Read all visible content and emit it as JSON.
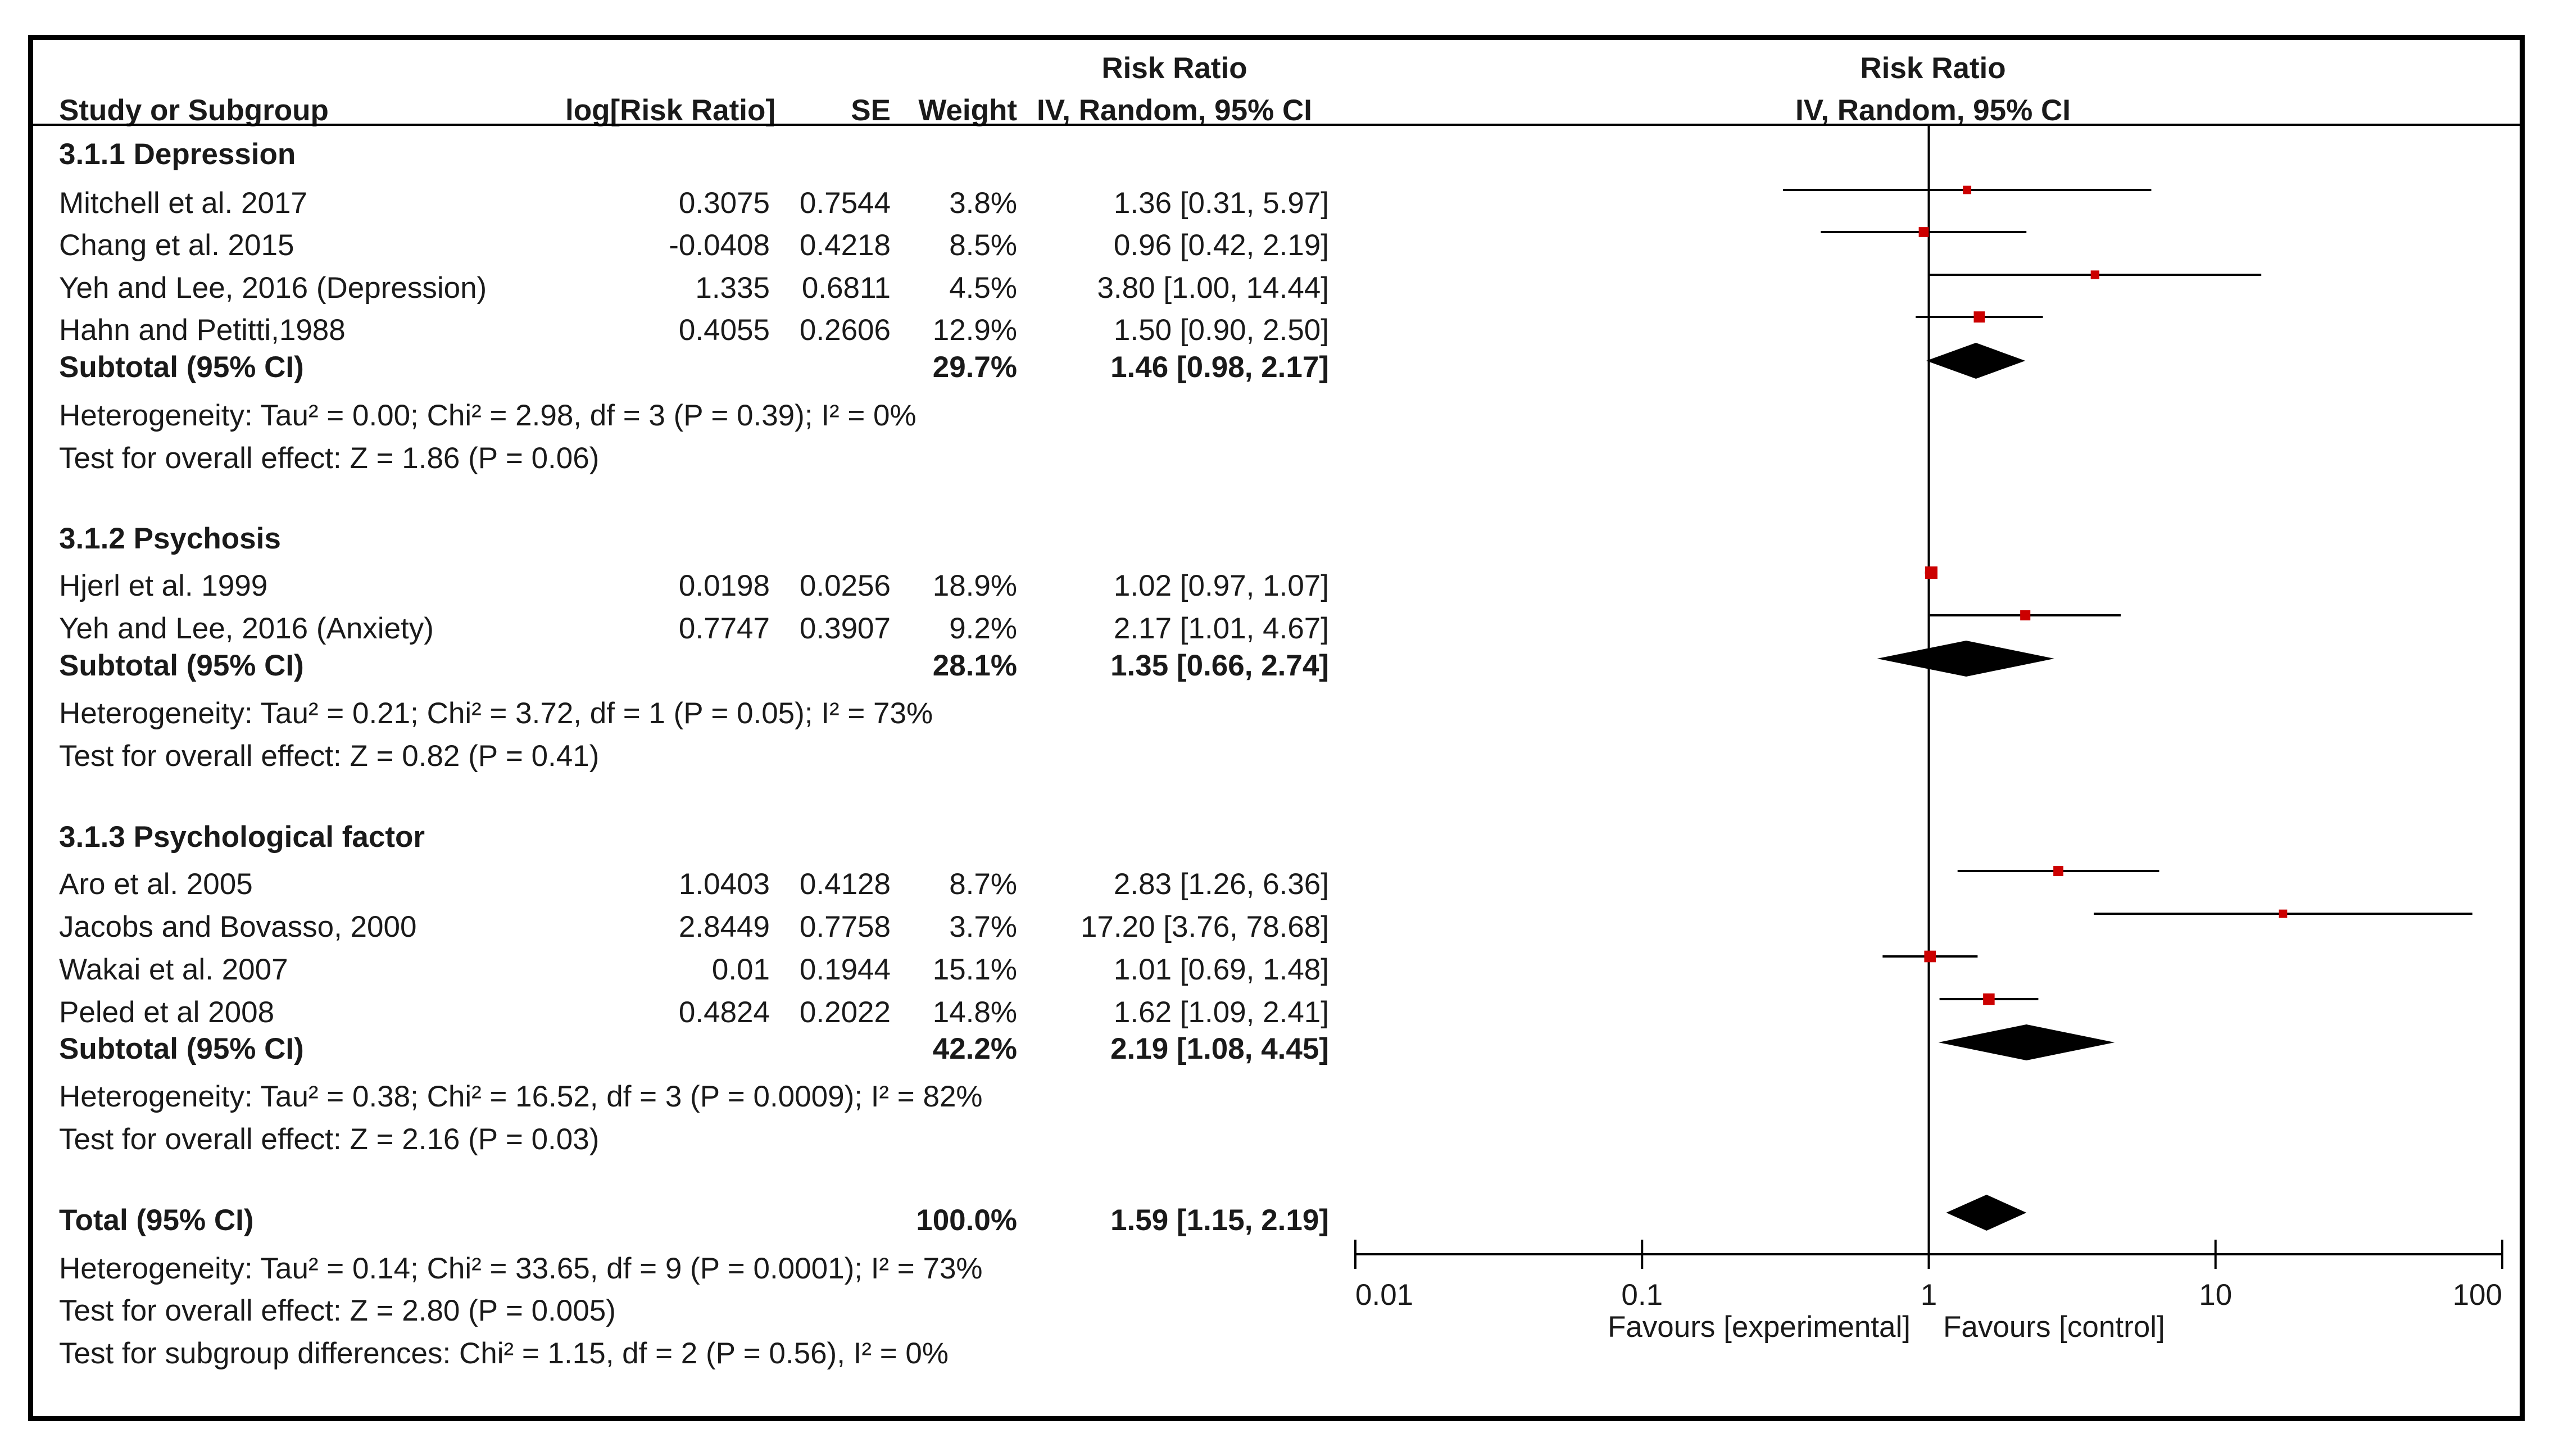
{
  "chart_data": {
    "type": "forest",
    "title": "Risk Ratio",
    "method": "IV, Random, 95% CI",
    "headers": {
      "study": "Study or Subgroup",
      "logrr": "log[Risk Ratio]",
      "se": "SE",
      "weight": "Weight",
      "rr_top": "Risk Ratio",
      "rr_method": "IV, Random, 95% CI",
      "plot_top": "Risk Ratio",
      "plot_method": "IV, Random, 95% CI"
    },
    "axis": {
      "scale": "log",
      "range": [
        0.01,
        100
      ],
      "ticks": [
        0.01,
        0.1,
        1,
        10,
        100
      ],
      "tick_labels": [
        "0.01",
        "0.1",
        "1",
        "10",
        "100"
      ],
      "label_left": "Favours [experimental]",
      "label_right": "Favours [control]"
    },
    "groups": [
      {
        "title": "3.1.1 Depression",
        "studies": [
          {
            "name": "Mitchell et al. 2017",
            "logrr": "0.3075",
            "se": "0.7544",
            "weight": "3.8%",
            "ci_text": "1.36 [0.31, 5.97]",
            "rr": 1.36,
            "lo": 0.31,
            "hi": 5.97
          },
          {
            "name": "Chang et al. 2015",
            "logrr": "-0.0408",
            "se": "0.4218",
            "weight": "8.5%",
            "ci_text": "0.96 [0.42, 2.19]",
            "rr": 0.96,
            "lo": 0.42,
            "hi": 2.19
          },
          {
            "name": "Yeh and Lee, 2016 (Depression)",
            "logrr": "1.335",
            "se": "0.6811",
            "weight": "4.5%",
            "ci_text": "3.80 [1.00, 14.44]",
            "rr": 3.8,
            "lo": 1.0,
            "hi": 14.44
          },
          {
            "name": "Hahn and Petitti,1988",
            "logrr": "0.4055",
            "se": "0.2606",
            "weight": "12.9%",
            "ci_text": "1.50 [0.90, 2.50]",
            "rr": 1.5,
            "lo": 0.9,
            "hi": 2.5
          }
        ],
        "subtotal": {
          "label": "Subtotal (95% CI)",
          "weight": "29.7%",
          "ci_text": "1.46 [0.98, 2.17]",
          "rr": 1.46,
          "lo": 0.98,
          "hi": 2.17
        },
        "heterogeneity": "Heterogeneity: Tau² = 0.00; Chi² = 2.98, df = 3 (P = 0.39); I² = 0%",
        "overall": "Test for overall effect: Z = 1.86 (P = 0.06)"
      },
      {
        "title": "3.1.2 Psychosis",
        "studies": [
          {
            "name": "Hjerl et al. 1999",
            "logrr": "0.0198",
            "se": "0.0256",
            "weight": "18.9%",
            "ci_text": "1.02 [0.97, 1.07]",
            "rr": 1.02,
            "lo": 0.97,
            "hi": 1.07
          },
          {
            "name": "Yeh and Lee, 2016 (Anxiety)",
            "logrr": "0.7747",
            "se": "0.3907",
            "weight": "9.2%",
            "ci_text": "2.17 [1.01, 4.67]",
            "rr": 2.17,
            "lo": 1.01,
            "hi": 4.67
          }
        ],
        "subtotal": {
          "label": "Subtotal (95% CI)",
          "weight": "28.1%",
          "ci_text": "1.35 [0.66, 2.74]",
          "rr": 1.35,
          "lo": 0.66,
          "hi": 2.74
        },
        "heterogeneity": "Heterogeneity: Tau² = 0.21; Chi² = 3.72, df = 1 (P = 0.05); I² = 73%",
        "overall": "Test for overall effect: Z = 0.82 (P = 0.41)"
      },
      {
        "title": "3.1.3 Psychological factor",
        "studies": [
          {
            "name": "Aro et al. 2005",
            "logrr": "1.0403",
            "se": "0.4128",
            "weight": "8.7%",
            "ci_text": "2.83 [1.26, 6.36]",
            "rr": 2.83,
            "lo": 1.26,
            "hi": 6.36
          },
          {
            "name": "Jacobs and Bovasso, 2000",
            "logrr": "2.8449",
            "se": "0.7758",
            "weight": "3.7%",
            "ci_text": "17.20 [3.76, 78.68]",
            "rr": 17.2,
            "lo": 3.76,
            "hi": 78.68
          },
          {
            "name": "Wakai et al. 2007",
            "logrr": "0.01",
            "se": "0.1944",
            "weight": "15.1%",
            "ci_text": "1.01 [0.69, 1.48]",
            "rr": 1.01,
            "lo": 0.69,
            "hi": 1.48
          },
          {
            "name": "Peled et al 2008",
            "logrr": "0.4824",
            "se": "0.2022",
            "weight": "14.8%",
            "ci_text": "1.62 [1.09, 2.41]",
            "rr": 1.62,
            "lo": 1.09,
            "hi": 2.41
          }
        ],
        "subtotal": {
          "label": "Subtotal (95% CI)",
          "weight": "42.2%",
          "ci_text": "2.19 [1.08, 4.45]",
          "rr": 2.19,
          "lo": 1.08,
          "hi": 4.45
        },
        "heterogeneity": "Heterogeneity: Tau² = 0.38; Chi² = 16.52, df = 3 (P = 0.0009); I² = 82%",
        "overall": "Test for overall effect: Z = 2.16 (P = 0.03)"
      }
    ],
    "total": {
      "label": "Total (95% CI)",
      "weight": "100.0%",
      "ci_text": "1.59 [1.15, 2.19]",
      "rr": 1.59,
      "lo": 1.15,
      "hi": 2.19,
      "heterogeneity": "Heterogeneity: Tau² = 0.14; Chi² = 33.65, df = 9 (P = 0.0001); I² = 73%",
      "overall": "Test for overall effect: Z = 2.80 (P = 0.005)",
      "subgroup": "Test for subgroup differences: Chi² = 1.15, df = 2 (P = 0.56), I² = 0%"
    },
    "colors": {
      "marker": "#cc0000",
      "diamond": "#000000",
      "line": "#000000",
      "text": "#1a1a1a"
    }
  }
}
